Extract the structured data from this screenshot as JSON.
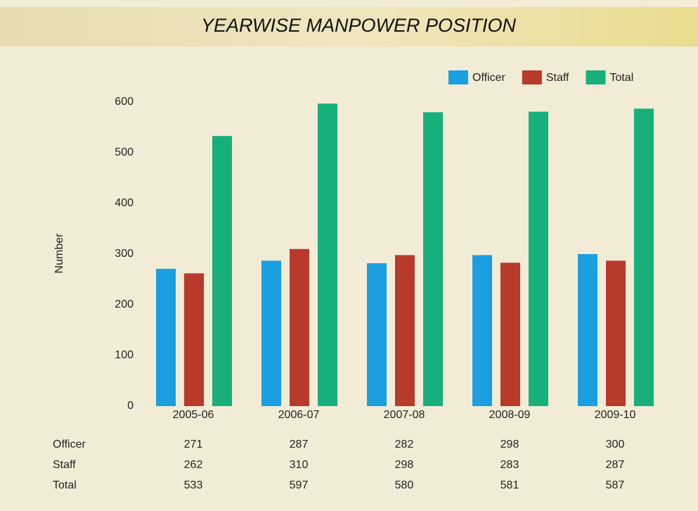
{
  "chart_data": {
    "type": "bar",
    "title": "YEARWISE MANPOWER POSITION",
    "y_label": "Number",
    "categories": [
      "2005-06",
      "2006-07",
      "2007-08",
      "2008-09",
      "2009-10"
    ],
    "series": [
      {
        "name": "Officer",
        "color": "#1a9fe0",
        "values": [
          271,
          287,
          282,
          298,
          300
        ]
      },
      {
        "name": "Staff",
        "color": "#b83a2a",
        "values": [
          262,
          310,
          298,
          283,
          287
        ]
      },
      {
        "name": "Total",
        "color": "#17b07b",
        "values": [
          533,
          597,
          580,
          581,
          587
        ]
      }
    ],
    "ylim": [
      0,
      600
    ],
    "yticks": [
      0,
      100,
      200,
      300,
      400,
      500,
      600
    ],
    "grid": false,
    "legend": "top-right"
  }
}
